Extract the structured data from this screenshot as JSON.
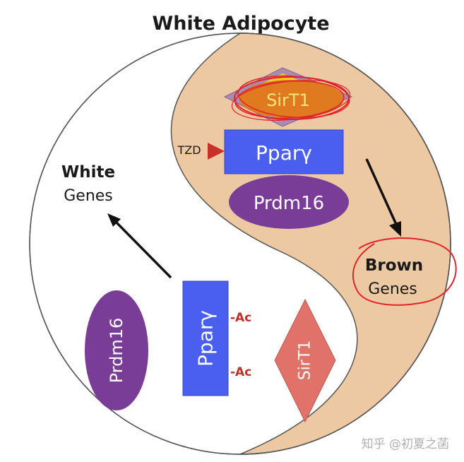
{
  "title": "White Adipocyte",
  "labels": {
    "white_bold": "White",
    "white_genes": "Genes",
    "brown_bold": "Brown",
    "brown_genes": "Genes",
    "tzd": "TZD",
    "ac_top": "-Ac",
    "ac_bottom": "-Ac"
  },
  "molecules": {
    "sirt1_top": "SirT1",
    "ppar_top": "Pparγ",
    "prdm16_top": "Prdm16",
    "prdm16_left": "Prdm16",
    "ppar_bottom": "Pparγ",
    "sirt1_right": "SirT1"
  },
  "watermark": "知乎 @初夏之菡",
  "colors": {
    "brown_region": "#edc9a3",
    "white_region": "#ffffff",
    "outline": "#555555",
    "ppar_blue": "#4a5ff0",
    "prdm16_purple": "#7a3d97",
    "sirt1_orange": "#e07a20",
    "sirt1_yellow": "#f2d21b",
    "sirt1_diamond_top": "#a98bb3",
    "sirt1_salmon": "#e0726a",
    "tzd_red": "#c8302a",
    "annotation_red": "#e0242a",
    "ac_red": "#c0302a"
  }
}
